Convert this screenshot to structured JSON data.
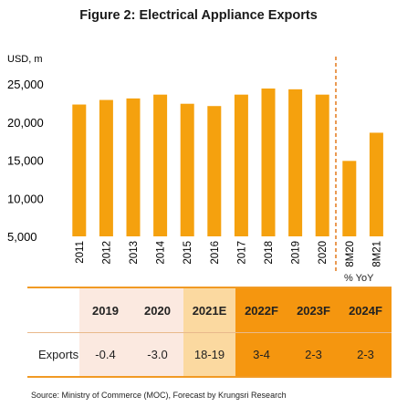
{
  "title": "Figure 2: Electrical Appliance Exports",
  "chart_data": {
    "type": "bar",
    "ylabel": "USD, m",
    "ylim": [
      5000,
      25000
    ],
    "yticks": [
      "5,000",
      "10,000",
      "15,000",
      "20,000",
      "25,000"
    ],
    "ytick_values": [
      5000,
      10000,
      15000,
      20000,
      25000
    ],
    "categories": [
      "2011",
      "2012",
      "2013",
      "2014",
      "2015",
      "2016",
      "2017",
      "2018",
      "2019",
      "2020",
      "8M20",
      "8M21"
    ],
    "values": [
      22300,
      22900,
      23100,
      23600,
      22400,
      22100,
      23600,
      24400,
      24300,
      23600,
      14900,
      18600
    ],
    "bar_color": "#f5a10e",
    "divider": "dashed vertical line between 2020 and 8M20",
    "divider_color": "#e3781a"
  },
  "yoy_table": {
    "unit": "% YoY",
    "header": [
      "",
      "2019",
      "2020",
      "2021E",
      "2022F",
      "2023F",
      "2024F"
    ],
    "row_label": "Exports",
    "values": [
      "-0.4",
      "-3.0",
      "18-19",
      "3-4",
      "2-3",
      "2-3"
    ],
    "colors": {
      "actual": "#fbe9e0",
      "estimate": "#fbd9a0",
      "forecast": "#f5960f",
      "border": "#f19a24"
    }
  },
  "source": "Source: Ministry of Commerce (MOC), Forecast by Krungsri Research"
}
